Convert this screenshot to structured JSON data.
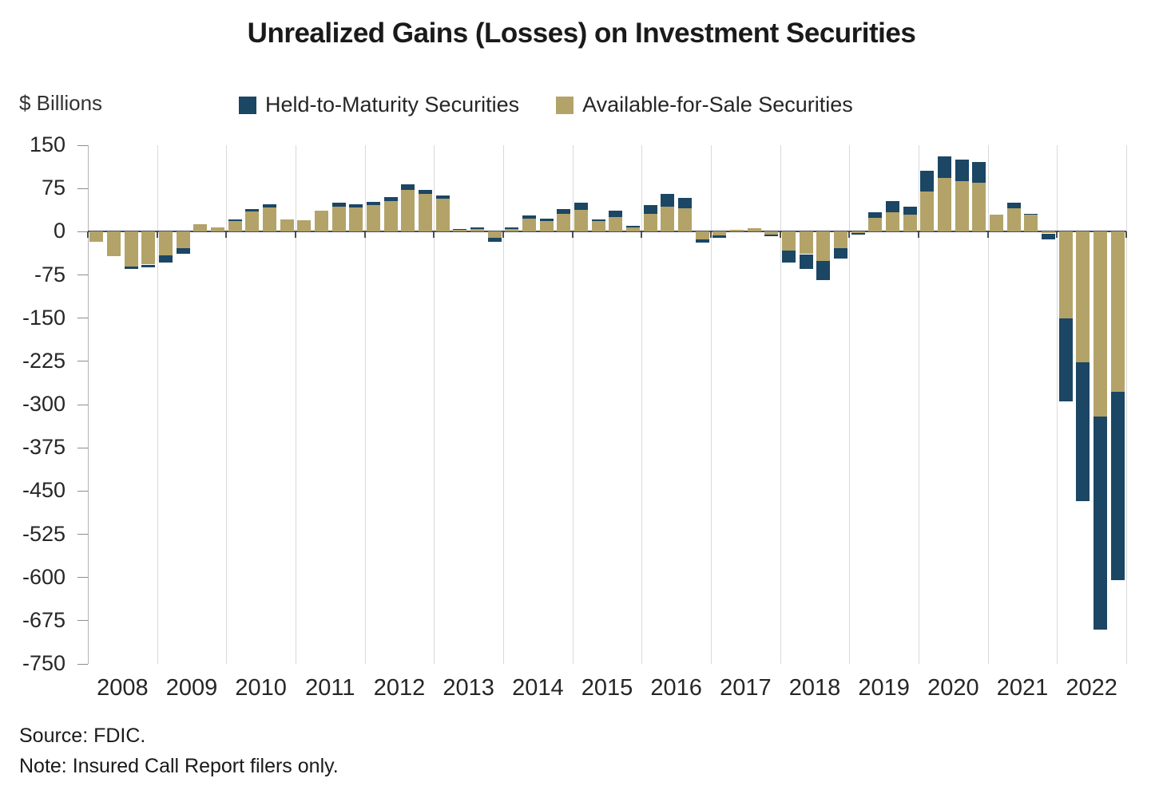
{
  "title": "Unrealized Gains (Losses) on Investment Securities",
  "y_axis_label": "$ Billions",
  "legend": [
    {
      "label": "Held-to-Maturity Securities",
      "color": "#1B4664"
    },
    {
      "label": "Available-for-Sale Securities",
      "color": "#B3A369"
    }
  ],
  "footer": {
    "source": "Source: FDIC.",
    "note": "Note: Insured Call Report filers only."
  },
  "chart_data": {
    "type": "bar",
    "stacked": true,
    "title": "Unrealized Gains (Losses) on Investment Securities",
    "y_axis_label": "$ Billions",
    "units": "$ Billions",
    "ylim": [
      -750,
      150
    ],
    "ytick_step": 75,
    "ytick_labels": [
      "150",
      "75",
      "0",
      "-75",
      "-150",
      "-225",
      "-300",
      "-375",
      "-450",
      "-525",
      "-600",
      "-675",
      "-750"
    ],
    "categories": [
      "2008",
      "2009",
      "2010",
      "2011",
      "2012",
      "2013",
      "2014",
      "2015",
      "2016",
      "2017",
      "2018",
      "2019",
      "2020",
      "2021",
      "2022"
    ],
    "bars_per_category": 4,
    "bar_period": "quarterly",
    "grid": "vertical-by-year",
    "legend_position": "top",
    "stack_order_from_zero": [
      "Available-for-Sale Securities",
      "Held-to-Maturity Securities"
    ],
    "series": [
      {
        "name": "Held-to-Maturity Securities",
        "color": "#1B4664",
        "values": [
          0,
          0,
          -4,
          -5,
          -12,
          -10,
          0,
          0,
          3,
          4,
          5,
          0,
          0,
          0,
          6,
          5,
          6,
          7,
          10,
          7,
          6,
          2,
          2,
          -8,
          2,
          5,
          4,
          8,
          12,
          3,
          10,
          3,
          15,
          21,
          18,
          -5,
          -3,
          0,
          0,
          -3,
          -21,
          -26,
          -33,
          -18,
          -3,
          10,
          19,
          14,
          36,
          38,
          37,
          36,
          0,
          10,
          2,
          -10,
          -143,
          -240,
          -369,
          -327
        ]
      },
      {
        "name": "Available-for-Sale Securities",
        "color": "#B3A369",
        "values": [
          -17,
          -42,
          -61,
          -57,
          -41,
          -28,
          13,
          7,
          18,
          35,
          42,
          21,
          20,
          37,
          44,
          42,
          46,
          53,
          72,
          65,
          57,
          3,
          5,
          -10,
          5,
          23,
          18,
          31,
          38,
          18,
          26,
          7,
          31,
          44,
          40,
          -14,
          -7,
          3,
          6,
          -5,
          -33,
          -39,
          -51,
          -28,
          -2,
          24,
          34,
          30,
          70,
          93,
          88,
          85,
          30,
          41,
          29,
          -3,
          -151,
          -227,
          -321,
          -278
        ]
      }
    ],
    "source": "Source: FDIC.",
    "note": "Note: Insured Call Report filers only."
  }
}
